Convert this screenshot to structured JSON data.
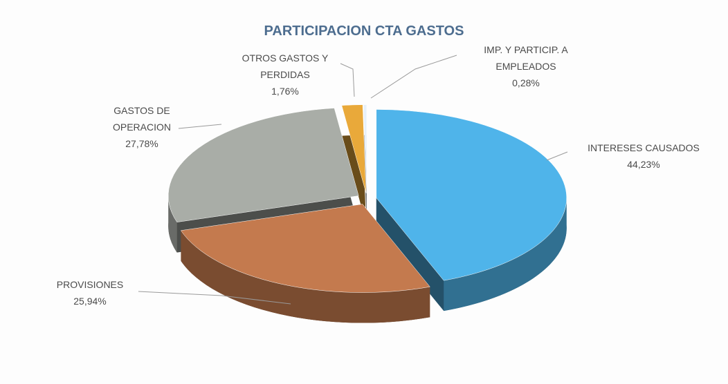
{
  "chart_data": {
    "type": "pie3d",
    "title": "PARTICIPACION CTA GASTOS",
    "categories": [
      "INTERESES CAUSADOS",
      "PROVISIONES",
      "GASTOS DE OPERACION",
      "OTROS GASTOS Y PERDIDAS",
      "IMP. Y PARTICIP. A EMPLEADOS"
    ],
    "values": [
      44.23,
      25.94,
      27.78,
      1.76,
      0.28
    ],
    "value_labels": [
      "44,23%",
      "25,94%",
      "27,78%",
      "1,76%",
      "0,28%"
    ],
    "colors": [
      "#4fb4ea",
      "#c47a4e",
      "#a9ada7",
      "#e9a93a",
      "#e6f0fa"
    ]
  }
}
